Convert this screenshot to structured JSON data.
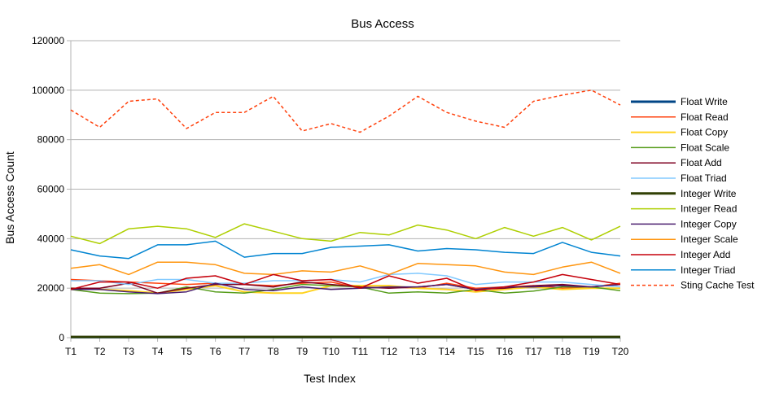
{
  "chart_data": {
    "type": "line",
    "title": "Bus Access",
    "xlabel": "Test Index",
    "ylabel": "Bus Access Count",
    "ylim": [
      0,
      120000
    ],
    "yticks": [
      0,
      20000,
      40000,
      60000,
      80000,
      100000,
      120000
    ],
    "ytick_labels": [
      "0",
      "20000",
      "40000",
      "60000",
      "80000",
      "100000",
      "120000"
    ],
    "grid": "horizontal",
    "legend_position": "right",
    "categories": [
      "T1",
      "T2",
      "T3",
      "T4",
      "T5",
      "T6",
      "T7",
      "T8",
      "T9",
      "T10",
      "T11",
      "T12",
      "T13",
      "T14",
      "T15",
      "T16",
      "T17",
      "T18",
      "T19",
      "T20"
    ],
    "series": [
      {
        "name": "Float Write",
        "color": "#004586",
        "width": 3,
        "dash": "",
        "values": [
          200,
          200,
          200,
          200,
          200,
          200,
          200,
          200,
          200,
          200,
          200,
          200,
          200,
          200,
          200,
          200,
          200,
          200,
          200,
          200
        ]
      },
      {
        "name": "Float Read",
        "color": "#ff420e",
        "width": 1.5,
        "dash": "",
        "values": [
          23500,
          23000,
          22500,
          22000,
          21500,
          22000,
          21500,
          21000,
          22000,
          22500,
          20000,
          20500,
          20000,
          22000,
          20000,
          20500,
          21000,
          20000,
          20500,
          22000
        ]
      },
      {
        "name": "Float Copy",
        "color": "#ffd320",
        "width": 2,
        "dash": "",
        "values": [
          20000,
          19500,
          19000,
          18000,
          19500,
          21000,
          18500,
          18000,
          18000,
          21000,
          21000,
          21000,
          20000,
          19500,
          18500,
          19500,
          20500,
          19500,
          20000,
          20000
        ]
      },
      {
        "name": "Float Scale",
        "color": "#579d1c",
        "width": 1.5,
        "dash": "",
        "values": [
          19500,
          18000,
          17800,
          18000,
          20500,
          18500,
          18000,
          19500,
          21500,
          21000,
          20500,
          18000,
          18500,
          18000,
          19500,
          18000,
          18800,
          20500,
          20500,
          19000
        ]
      },
      {
        "name": "Float Add",
        "color": "#7e0021",
        "width": 1.5,
        "dash": "",
        "values": [
          20000,
          20000,
          22000,
          18000,
          20000,
          21500,
          21500,
          20500,
          22500,
          21500,
          20500,
          20000,
          20500,
          21500,
          19500,
          20000,
          21000,
          21500,
          20500,
          21500
        ]
      },
      {
        "name": "Float Triad",
        "color": "#83caff",
        "width": 1.5,
        "dash": "",
        "values": [
          23000,
          23000,
          21500,
          23500,
          23500,
          22000,
          22000,
          23000,
          23000,
          23500,
          22500,
          25500,
          26000,
          25000,
          21500,
          22500,
          22500,
          22500,
          21500,
          20500
        ]
      },
      {
        "name": "Integer Write",
        "color": "#314004",
        "width": 3,
        "dash": "",
        "values": [
          300,
          300,
          300,
          300,
          300,
          300,
          300,
          300,
          300,
          300,
          300,
          300,
          300,
          300,
          300,
          300,
          300,
          300,
          300,
          300
        ]
      },
      {
        "name": "Integer Read",
        "color": "#aecf00",
        "width": 1.5,
        "dash": "",
        "values": [
          41000,
          38000,
          44000,
          45000,
          44000,
          40500,
          46000,
          43000,
          40000,
          39000,
          42500,
          41500,
          45500,
          43500,
          40000,
          44500,
          41000,
          44500,
          39500,
          45000
        ]
      },
      {
        "name": "Integer Copy",
        "color": "#4b1f6f",
        "width": 1.5,
        "dash": "",
        "values": [
          19500,
          19500,
          18500,
          17800,
          18500,
          22000,
          19500,
          19000,
          20500,
          19500,
          20000,
          20500,
          20500,
          21500,
          19500,
          20500,
          20500,
          21000,
          20500,
          21500
        ]
      },
      {
        "name": "Integer Scale",
        "color": "#ff950e",
        "width": 1.5,
        "dash": "",
        "values": [
          28000,
          29500,
          25500,
          30500,
          30500,
          29500,
          26000,
          25500,
          27000,
          26500,
          29000,
          25500,
          30000,
          29500,
          29000,
          26500,
          25500,
          28500,
          30500,
          26000
        ]
      },
      {
        "name": "Integer Add",
        "color": "#c5000b",
        "width": 1.5,
        "dash": "",
        "values": [
          19500,
          22500,
          22500,
          20000,
          24000,
          25000,
          21500,
          25500,
          23000,
          23500,
          20000,
          25000,
          22000,
          24000,
          19000,
          20500,
          22500,
          25500,
          23500,
          21500
        ]
      },
      {
        "name": "Integer Triad",
        "color": "#0084d1",
        "width": 1.5,
        "dash": "",
        "values": [
          35500,
          33000,
          32000,
          37500,
          37500,
          39000,
          32500,
          34000,
          34000,
          36500,
          37000,
          37500,
          35000,
          36000,
          35500,
          34500,
          34000,
          38500,
          34500,
          33000
        ]
      },
      {
        "name": "Sting Cache Test",
        "color": "#ff420e",
        "width": 1.5,
        "dash": "4,3",
        "values": [
          92000,
          85000,
          95500,
          96500,
          84500,
          91000,
          91000,
          97500,
          83500,
          86500,
          83000,
          89500,
          97500,
          91000,
          87500,
          85000,
          95500,
          98000,
          100000,
          94000
        ]
      }
    ]
  }
}
